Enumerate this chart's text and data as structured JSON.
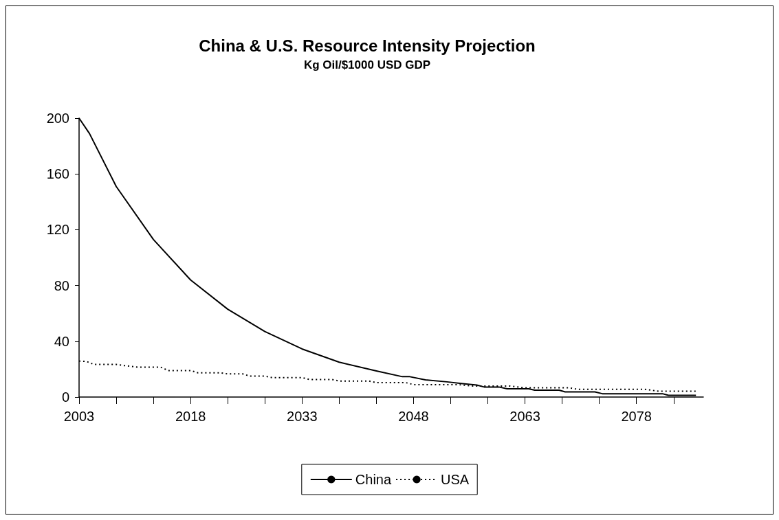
{
  "chart_data": {
    "type": "line",
    "title": "China & U.S. Resource Intensity Projection",
    "subtitle": "Kg Oil/$1000 USD GDP",
    "xlim": [
      2003,
      2087
    ],
    "xticks": [
      2003,
      {
        "value": 2008,
        "label": null
      },
      {
        "value": 2013,
        "label": null
      },
      2018,
      {
        "value": 2023,
        "label": null
      },
      {
        "value": 2028,
        "label": null
      },
      2033,
      {
        "value": 2038,
        "label": null
      },
      {
        "value": 2043,
        "label": null
      },
      2048,
      {
        "value": 2053,
        "label": null
      },
      {
        "value": 2058,
        "label": null
      },
      2063,
      {
        "value": 2068,
        "label": null
      },
      {
        "value": 2073,
        "label": null
      },
      2078,
      {
        "value": 2083,
        "label": null
      }
    ],
    "ylim": [
      0,
      200
    ],
    "yticks": [
      0,
      40,
      80,
      120,
      160,
      200
    ],
    "grid": false,
    "legend": "bottom",
    "marker": "none",
    "series": [
      {
        "name": "China",
        "color": "#000000",
        "line_style": "solid",
        "x": [
          2003,
          2004.4,
          2008,
          2013,
          2018,
          2023,
          2028,
          2033,
          2038,
          2043,
          2046.5,
          2047.5,
          2049.6,
          2052.5,
          2054.6,
          2056.5,
          2057.5,
          2059.5,
          2060.6,
          2063.5,
          2064.3,
          2067.6,
          2068.4,
          2072.4,
          2073.4,
          2081.5,
          2082.3,
          2086
        ],
        "values": [
          200,
          189,
          151,
          113,
          84,
          63,
          47,
          34.5,
          25,
          18.7,
          14.6,
          14.6,
          12.3,
          10.9,
          9.6,
          8.6,
          7.2,
          7.2,
          5.9,
          5.9,
          4.9,
          4.9,
          3.7,
          3.7,
          2.4,
          2.4,
          1.2,
          1.2
        ]
      },
      {
        "name": "USA",
        "color": "#000000",
        "line_style": "dotted",
        "x": [
          2003,
          2004,
          2005,
          2008,
          2009,
          2011,
          2014,
          2015,
          2018,
          2019,
          2022,
          2023,
          2025,
          2026,
          2028,
          2029,
          2033,
          2034,
          2037,
          2038,
          2042,
          2043,
          2047,
          2048,
          2054,
          2056,
          2061,
          2063,
          2069,
          2070,
          2079,
          2081,
          2086
        ],
        "values": [
          25.8,
          25.5,
          23.4,
          23.4,
          22.6,
          21.4,
          21.4,
          19,
          19,
          17.4,
          17.4,
          16.6,
          16.6,
          15,
          15,
          13.9,
          13.9,
          12.6,
          12.6,
          11.5,
          11.5,
          10.3,
          10.3,
          8.9,
          8.9,
          7.9,
          7.9,
          6.6,
          6.6,
          5.6,
          5.6,
          4.2,
          4.2
        ]
      }
    ]
  }
}
